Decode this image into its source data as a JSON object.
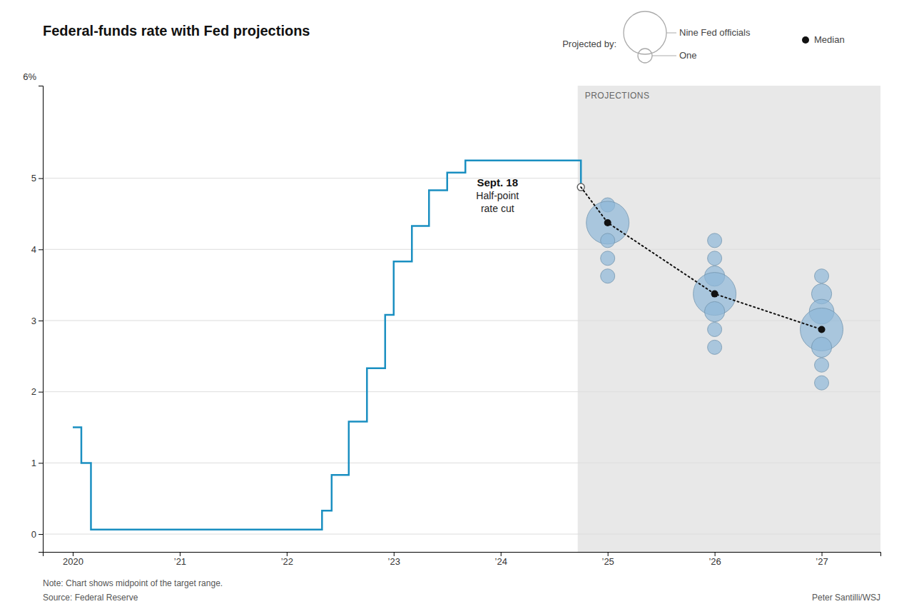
{
  "chart_data": {
    "type": "line",
    "title": "Federal-funds rate with Fed projections",
    "note": "Note: Chart shows midpoint of the target range.",
    "source": "Source: Federal Reserve",
    "credit": "Peter Santilli/WSJ",
    "ylabel": "6%",
    "grid": true,
    "legend": "top-right",
    "xlim": [
      2019.72,
      2027.55
    ],
    "ylim": [
      -0.25,
      6.3
    ],
    "xticks": [
      {
        "value": 2020,
        "label": "2020"
      },
      {
        "value": 2021,
        "label": "’21"
      },
      {
        "value": 2022,
        "label": "’22"
      },
      {
        "value": 2023,
        "label": "’23"
      },
      {
        "value": 2024,
        "label": "’24"
      },
      {
        "value": 2025,
        "label": "’25"
      },
      {
        "value": 2026,
        "label": "’26"
      },
      {
        "value": 2027,
        "label": "’27"
      }
    ],
    "yticks": [
      0,
      1,
      2,
      3,
      4,
      5
    ],
    "shaded_region": {
      "x0": 2024.72,
      "label": "PROJECTIONS",
      "color": "#e8e8e8"
    },
    "annotations": [
      {
        "x": 2023.97,
        "y": 4.85,
        "lines": [
          "Sept. 18",
          "Half-point",
          "rate cut"
        ]
      }
    ],
    "series": [
      {
        "type": "step",
        "color": "#1a8fc1",
        "x": [
          2020.0,
          2020.08,
          2020.17,
          2022.25,
          2022.33,
          2022.42,
          2022.58,
          2022.75,
          2022.92,
          2023.0,
          2023.17,
          2023.33,
          2023.5,
          2023.67,
          2024.67,
          2024.75
        ],
        "values": [
          1.5,
          1.0,
          0.0625,
          0.0625,
          0.33,
          0.83,
          1.58,
          2.33,
          3.08,
          3.83,
          4.33,
          4.83,
          5.08,
          5.25,
          5.25,
          4.875
        ]
      },
      {
        "type": "bubble",
        "color": "#8fb8d8",
        "x": [
          2025.0,
          2025.0,
          2025.0,
          2025.0,
          2025.0,
          2026.0,
          2026.0,
          2026.0,
          2026.0,
          2026.0,
          2026.0,
          2026.0,
          2027.0,
          2027.0,
          2027.0,
          2027.0,
          2027.0,
          2027.0,
          2027.0
        ],
        "values": [
          4.625,
          4.375,
          4.125,
          3.875,
          3.625,
          4.125,
          3.875,
          3.625,
          3.375,
          3.125,
          2.875,
          2.625,
          3.625,
          3.375,
          3.125,
          2.875,
          2.625,
          2.375,
          2.125
        ],
        "sizes": [
          1,
          9,
          1,
          1,
          1,
          1,
          1,
          2,
          9,
          2,
          1,
          1,
          1,
          2,
          3,
          9,
          2,
          1,
          1
        ]
      },
      {
        "type": "line",
        "name": "Median",
        "color": "#111111",
        "marker": "circle",
        "line_style": "dotted",
        "x": [
          2025.0,
          2026.0,
          2027.0
        ],
        "values": [
          4.375,
          3.375,
          2.875
        ]
      }
    ],
    "size_legend": {
      "title": "Projected by:",
      "entries": [
        {
          "size": 9,
          "label": "Nine Fed officials"
        },
        {
          "size": 1,
          "label": "One"
        }
      ]
    }
  }
}
